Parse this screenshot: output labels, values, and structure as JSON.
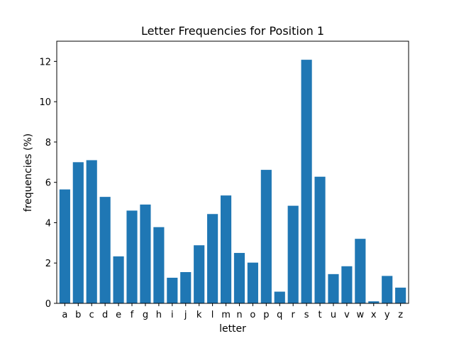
{
  "chart_data": {
    "type": "bar",
    "title": "Letter Frequencies for Position 1",
    "xlabel": "letter",
    "ylabel": "frequencies (%)",
    "categories": [
      "a",
      "b",
      "c",
      "d",
      "e",
      "f",
      "g",
      "h",
      "i",
      "j",
      "k",
      "l",
      "m",
      "n",
      "o",
      "p",
      "q",
      "r",
      "s",
      "t",
      "u",
      "v",
      "w",
      "x",
      "y",
      "z"
    ],
    "values": [
      5.65,
      7.0,
      7.1,
      5.28,
      2.33,
      4.6,
      4.9,
      3.78,
      1.27,
      1.55,
      2.88,
      4.43,
      5.35,
      2.5,
      2.02,
      6.62,
      0.58,
      4.84,
      12.08,
      6.28,
      1.45,
      1.84,
      3.2,
      0.1,
      1.36,
      0.78
    ],
    "ylim": [
      0,
      13.0
    ],
    "yticks": [
      0,
      2,
      4,
      6,
      8,
      10,
      12
    ],
    "bar_color": "#1f77b4",
    "grid": false
  }
}
